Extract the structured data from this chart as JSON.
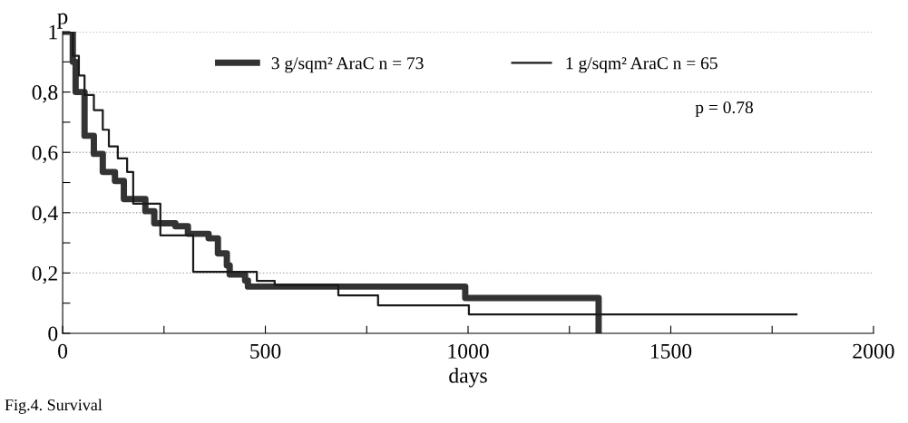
{
  "chart_data": {
    "type": "step",
    "xlabel": "days",
    "ylabel": "p",
    "xlim": [
      0,
      2000
    ],
    "ylim": [
      0,
      1
    ],
    "xticks": [
      0,
      {
        "value": 250,
        "label": null
      },
      500,
      {
        "value": 750,
        "label": null
      },
      1000,
      {
        "value": 1250,
        "label": null
      },
      1500,
      {
        "value": 1750,
        "label": null
      },
      2000
    ],
    "yticks": [
      {
        "value": 0,
        "label": "0"
      },
      {
        "value": 0.1,
        "label": null
      },
      {
        "value": 0.2,
        "label": "0,2"
      },
      {
        "value": 0.3,
        "label": null
      },
      {
        "value": 0.4,
        "label": "0,4"
      },
      {
        "value": 0.5,
        "label": null
      },
      {
        "value": 0.6,
        "label": "0,6"
      },
      {
        "value": 0.7,
        "label": null
      },
      {
        "value": 0.8,
        "label": "0,8"
      },
      {
        "value": 0.9,
        "label": null
      },
      {
        "value": 1,
        "label": "1"
      }
    ],
    "grid": "y",
    "legend": "top",
    "line_style": "solid",
    "marker": "none",
    "series": [
      {
        "name": "3 g/sqm² AraC n = 73",
        "color": "#333333",
        "x": [
          0,
          25,
          32,
          54,
          77,
          99,
          129,
          151,
          204,
          226,
          278,
          309,
          360,
          383,
          405,
          412,
          450,
          457,
          993,
          1322,
          1322
        ],
        "values": [
          1,
          0.9,
          0.8,
          0.655,
          0.595,
          0.535,
          0.505,
          0.445,
          0.405,
          0.365,
          0.355,
          0.33,
          0.315,
          0.265,
          0.225,
          0.195,
          0.175,
          0.155,
          0.117,
          0.117,
          0
        ]
      },
      {
        "name": "1 g/sqm² AraC n = 65",
        "color": "#1a1a1a",
        "x": [
          0,
          25,
          40,
          54,
          77,
          99,
          114,
          136,
          159,
          174,
          241,
          322,
          479,
          523,
          680,
          778,
          1002,
          1810
        ],
        "values": [
          1,
          0.92,
          0.855,
          0.79,
          0.74,
          0.675,
          0.62,
          0.58,
          0.535,
          0.43,
          0.325,
          0.204,
          0.174,
          0.16,
          0.126,
          0.093,
          0.063,
          0.063
        ]
      }
    ],
    "annotations": [
      "p = 0.78",
      "Fig.4. Survival"
    ]
  }
}
